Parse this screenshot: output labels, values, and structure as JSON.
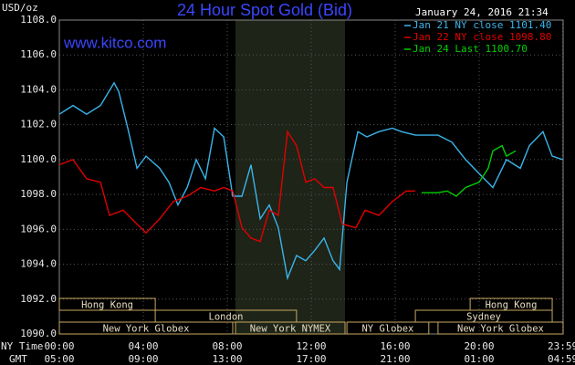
{
  "chart_data": {
    "type": "line",
    "title": "24 Hour Spot Gold (Bid)",
    "subtitle": "January 24, 2016 21:34",
    "watermark": "www.kitco.com",
    "y_label": "USD/oz",
    "x_label": "NY Time",
    "x2_label": "GMT",
    "xlim": [
      0,
      24
    ],
    "ylim": [
      1090,
      1108
    ],
    "yticks": [
      {
        "value": 1090,
        "label": "1090.0"
      },
      {
        "value": 1092,
        "label": "1092.0"
      },
      {
        "value": 1094,
        "label": "1094.0"
      },
      {
        "value": 1096,
        "label": "1096.0"
      },
      {
        "value": 1098,
        "label": "1098.0"
      },
      {
        "value": 1100,
        "label": "1100.0"
      },
      {
        "value": 1102,
        "label": "1102.0"
      },
      {
        "value": 1104,
        "label": "1104.0"
      },
      {
        "value": 1106,
        "label": "1106.0"
      },
      {
        "value": 1108,
        "label": "1108.0"
      }
    ],
    "xticks": [
      {
        "value": 0,
        "label": "00:00"
      },
      {
        "value": 4,
        "label": "04:00"
      },
      {
        "value": 8,
        "label": "08:00"
      },
      {
        "value": 12,
        "label": "12:00"
      },
      {
        "value": 16,
        "label": "16:00"
      },
      {
        "value": 20,
        "label": "20:00"
      },
      {
        "value": 23.98,
        "label": "23:59"
      }
    ],
    "gmt_labels": [
      "05:00",
      "09:00",
      "13:00",
      "17:00",
      "21:00",
      "01:00",
      "04:59"
    ],
    "grid": true,
    "highlight": [
      8.39,
      13.61
    ],
    "session_rows": [
      [
        {
          "label": "Hong Kong",
          "start": 0,
          "end": 4.57
        },
        {
          "label": "Hong Kong",
          "start": 19.57,
          "end": 23.48
        }
      ],
      [
        {
          "label": "London",
          "start": 4.57,
          "end": 11.3
        },
        {
          "label": "Sydney",
          "start": 16.96,
          "end": 23.48
        }
      ],
      [
        {
          "label": "New York Globex",
          "start": 0,
          "end": 8.26
        },
        {
          "label": "New York NYMEX",
          "start": 8.39,
          "end": 13.61
        },
        {
          "label": "NY Globex",
          "start": 13.7,
          "end": 17.6
        },
        {
          "label": "New York Globex",
          "start": 18.04,
          "end": 24
        }
      ]
    ],
    "series": [
      {
        "name": "Jan 21 NY close 1101.40",
        "color": "#3ab4ea",
        "x": [
          0,
          0.65,
          1.3,
          1.96,
          2.61,
          2.83,
          3.26,
          3.7,
          4.13,
          4.78,
          5.22,
          5.65,
          6.09,
          6.52,
          6.96,
          7.39,
          7.83,
          8.26,
          8.7,
          9.13,
          9.57,
          10,
          10.43,
          10.87,
          11.3,
          11.74,
          12.17,
          12.61,
          13.04,
          13.35,
          13.7,
          14.22,
          14.65,
          15.22,
          15.87,
          16.3,
          16.96,
          18.04,
          18.7,
          19.35,
          20,
          20.65,
          21.3,
          21.96,
          22.39,
          23.04,
          23.48,
          23.98
        ],
        "values": [
          1102.6,
          1103.1,
          1102.6,
          1103.1,
          1104.4,
          1103.9,
          1101.8,
          1099.5,
          1100.2,
          1099.5,
          1098.7,
          1097.4,
          1098.4,
          1100.0,
          1098.9,
          1101.8,
          1101.3,
          1097.9,
          1097.9,
          1099.7,
          1096.6,
          1097.4,
          1096.1,
          1093.2,
          1094.5,
          1094.2,
          1094.8,
          1095.5,
          1094.2,
          1093.7,
          1098.7,
          1101.6,
          1101.3,
          1101.6,
          1101.8,
          1101.6,
          1101.4,
          1101.4,
          1101.0,
          1100.0,
          1099.2,
          1098.4,
          1100.0,
          1099.5,
          1100.8,
          1101.6,
          1100.2,
          1100.0
        ]
      },
      {
        "name": "Jan 22 NY close 1098.80",
        "color": "#e00000",
        "x": [
          0,
          0.65,
          1.3,
          1.96,
          2.39,
          3.04,
          3.7,
          4.13,
          4.78,
          5.43,
          6.09,
          6.74,
          7.39,
          7.83,
          8.26,
          8.7,
          9.13,
          9.57,
          10,
          10.43,
          10.87,
          11.3,
          11.74,
          12.17,
          12.61,
          13.04,
          13.48,
          14.13,
          14.57,
          15.22,
          15.87,
          16.52,
          16.96
        ],
        "values": [
          1099.7,
          1100.0,
          1098.9,
          1098.7,
          1096.8,
          1097.1,
          1096.3,
          1095.8,
          1096.6,
          1097.6,
          1097.9,
          1098.4,
          1098.2,
          1098.4,
          1098.2,
          1096.1,
          1095.5,
          1095.3,
          1097.1,
          1096.8,
          1101.6,
          1100.8,
          1098.7,
          1098.9,
          1098.4,
          1098.4,
          1096.3,
          1096.1,
          1097.1,
          1096.8,
          1097.6,
          1098.2,
          1098.2
        ]
      },
      {
        "name": "Jan 24 Last 1100.70",
        "color": "#00d000",
        "x": [
          17.26,
          18.04,
          18.48,
          18.91,
          19.35,
          20,
          20.43,
          20.65,
          21.09,
          21.3,
          21.74
        ],
        "values": [
          1098.1,
          1098.1,
          1098.2,
          1097.9,
          1098.4,
          1098.7,
          1099.5,
          1100.5,
          1100.8,
          1100.2,
          1100.5
        ]
      }
    ]
  }
}
